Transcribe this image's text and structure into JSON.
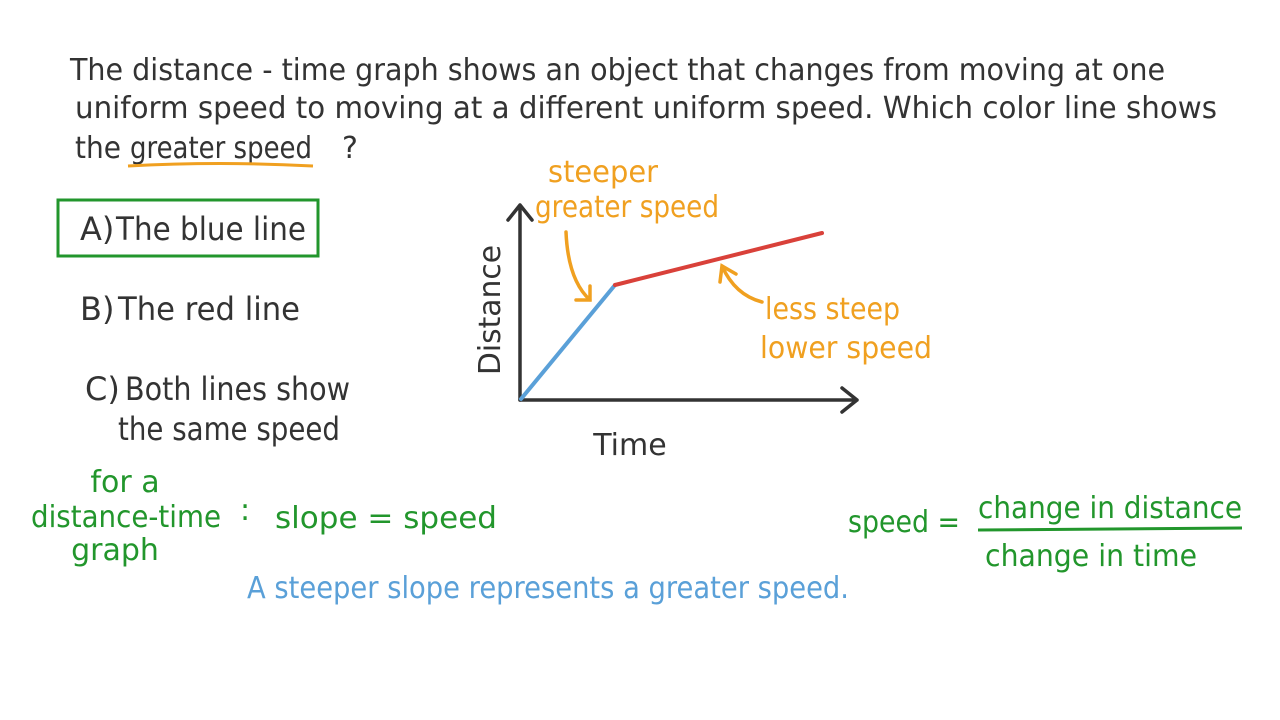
{
  "question": {
    "line_1": "The distance - time graph shows an object that changes from moving at one",
    "line_2": "uniform speed to moving at a different uniform speed.  Which color line shows",
    "line_3_start": "the",
    "emphasis": "greater speed",
    "line_3_end": "?"
  },
  "options": [
    {
      "letter": "A)",
      "lines": [
        "The blue line"
      ]
    },
    {
      "letter": "B)",
      "lines": [
        "The red line"
      ]
    },
    {
      "letter": "C)",
      "lines": [
        "Both lines show",
        "the same speed"
      ]
    }
  ],
  "selected_option": 0,
  "graph": {
    "y_label": "Distance",
    "x_label": "Time",
    "steep_note": [
      "steeper",
      "greater speed"
    ],
    "less_steep_note": [
      "less steep",
      "lower speed"
    ]
  },
  "rule": {
    "context": [
      "for a",
      "distance-time",
      "graph"
    ],
    "colon": ":",
    "statement": "slope = speed"
  },
  "formula": {
    "lhs": "speed =",
    "numerator": "change in distance",
    "denominator": "change in time"
  },
  "summary": "A steeper slope represents a greater speed."
}
